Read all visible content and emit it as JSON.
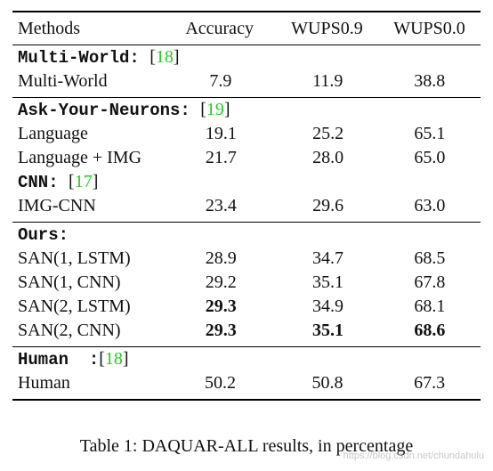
{
  "header": [
    "Methods",
    "Accuracy",
    "WUPS0.9",
    "WUPS0.0"
  ],
  "sections": [
    {
      "group": {
        "name": "Multi-World:",
        "ref": "18"
      },
      "rows": [
        {
          "method": "Multi-World",
          "acc": "7.9",
          "w09": "11.9",
          "w00": "38.8"
        }
      ]
    },
    {
      "group": {
        "name": "Ask-Your-Neurons:",
        "ref": "19"
      },
      "rows": [
        {
          "method": "Language",
          "acc": "19.1",
          "w09": "25.2",
          "w00": "65.1"
        },
        {
          "method": "Language + IMG",
          "acc": "21.7",
          "w09": "28.0",
          "w00": "65.0"
        }
      ],
      "subgroup": {
        "name": "CNN:",
        "ref": "17"
      },
      "subrows": [
        {
          "method": "IMG-CNN",
          "acc": "23.4",
          "w09": "29.6",
          "w00": "63.0"
        }
      ]
    },
    {
      "group": {
        "name": "Ours:"
      },
      "rows": [
        {
          "method": "SAN(1, LSTM)",
          "acc": "28.9",
          "w09": "34.7",
          "w00": "68.5"
        },
        {
          "method": "SAN(1, CNN)",
          "acc": "29.2",
          "w09": "35.1",
          "w00": "67.8"
        },
        {
          "method": "SAN(2, LSTM)",
          "acc": "29.3",
          "w09": "34.9",
          "w00": "68.1"
        },
        {
          "method": "SAN(2, CNN)",
          "acc": "29.3",
          "w09": "35.1",
          "w00": "68.6"
        }
      ]
    },
    {
      "group": {
        "name": "Human  :",
        "ref": "18"
      },
      "rows": [
        {
          "method": "Human",
          "acc": "50.2",
          "w09": "50.8",
          "w00": "67.3"
        }
      ]
    }
  ],
  "caption": "Table 1: DAQUAR-ALL results, in percentage",
  "watermark": "https://blog.csdn.net/chundahulu"
}
